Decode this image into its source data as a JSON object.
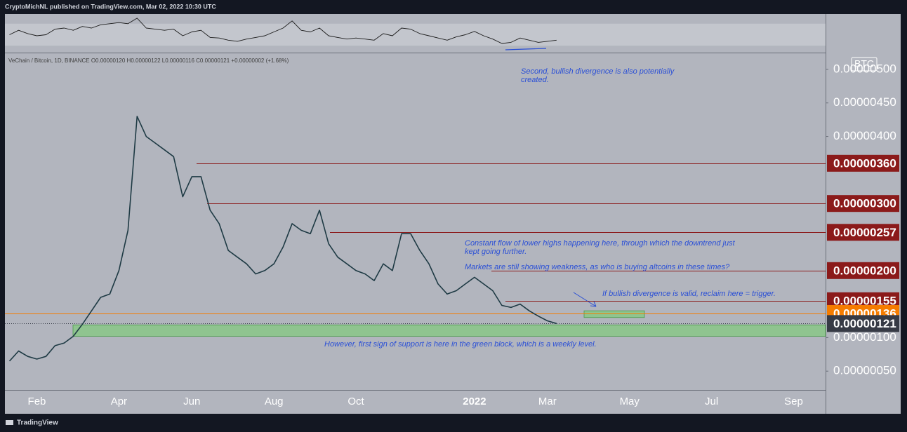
{
  "header": "CryptoMichNL published on TradingView.com, Mar 02, 2022 10:30 UTC",
  "footer": "TradingView",
  "chart_data": {
    "type": "line",
    "legend_text": "VeChain / Bitcoin, 1D, BINANCE  O0.00000120  H0.00000122  L0.00000116  C0.00000121  +0.00000002 (+1.68%)",
    "currency": "BTC",
    "categories": [
      null,
      null,
      null,
      "Feb",
      null,
      null,
      null,
      null,
      null,
      null,
      null,
      null,
      "Apr",
      null,
      null,
      null,
      null,
      null,
      null,
      null,
      "Jun",
      null,
      null,
      null,
      null,
      null,
      null,
      null,
      null,
      "Aug",
      null,
      null,
      null,
      null,
      null,
      null,
      null,
      null,
      "Oct",
      null,
      null,
      null,
      null,
      null,
      null,
      null,
      null,
      null,
      null,
      null,
      null,
      "2022",
      null,
      null,
      null,
      null,
      null,
      null,
      null,
      "Mar",
      null,
      null,
      null,
      null,
      null,
      null,
      null,
      null,
      "May",
      null,
      null,
      null,
      null,
      null,
      null,
      null,
      null,
      "Jul",
      null,
      null,
      null,
      null,
      null,
      null,
      null,
      null,
      "Sep",
      null,
      null,
      null
    ],
    "series": [
      {
        "name": "VET/BTC",
        "color": "#1e3a44",
        "values": [
          6.5e-07,
          8e-07,
          7.2e-07,
          6.8e-07,
          7.2e-07,
          8.8e-07,
          9.2e-07,
          1.02e-06,
          1.2e-06,
          1.4e-06,
          1.6e-06,
          1.65e-06,
          2e-06,
          2.6e-06,
          4.3e-06,
          4e-06,
          3.9e-06,
          3.8e-06,
          3.7e-06,
          3.1e-06,
          3.4e-06,
          3.4e-06,
          2.9e-06,
          2.7e-06,
          2.3e-06,
          2.2e-06,
          2.1e-06,
          1.95e-06,
          2e-06,
          2.1e-06,
          2.35e-06,
          2.7e-06,
          2.6e-06,
          2.55e-06,
          2.9e-06,
          2.4e-06,
          2.2e-06,
          2.1e-06,
          2e-06,
          1.95e-06,
          1.85e-06,
          2.1e-06,
          2e-06,
          2.55e-06,
          2.55e-06,
          2.3e-06,
          2.1e-06,
          1.8e-06,
          1.65e-06,
          1.7e-06,
          1.8e-06,
          1.9e-06,
          1.8e-06,
          1.7e-06,
          1.48e-06,
          1.45e-06,
          1.5e-06,
          1.4e-06,
          1.32e-06,
          1.25e-06,
          1.21e-06,
          null,
          null,
          null,
          null,
          null,
          null,
          null,
          null,
          null,
          null,
          null,
          null,
          null,
          null,
          null,
          null,
          null,
          null,
          null,
          null,
          null,
          null,
          null,
          null,
          null,
          null,
          null,
          null,
          null
        ]
      },
      {
        "name": "RSI",
        "color": "#1b1b1b",
        "axis": "rsi",
        "values": [
          50,
          58,
          52,
          48,
          50,
          60,
          62,
          58,
          65,
          62,
          68,
          70,
          72,
          70,
          80,
          62,
          60,
          58,
          60,
          48,
          55,
          58,
          45,
          44,
          40,
          38,
          42,
          45,
          48,
          55,
          62,
          75,
          58,
          55,
          62,
          48,
          45,
          42,
          44,
          42,
          40,
          52,
          48,
          62,
          60,
          52,
          48,
          44,
          40,
          46,
          50,
          56,
          48,
          42,
          34,
          36,
          44,
          40,
          36,
          38,
          40,
          null,
          null,
          null,
          null,
          null,
          null,
          null,
          null,
          null,
          null,
          null,
          null,
          null,
          null,
          null,
          null,
          null,
          null,
          null,
          null,
          null,
          null,
          null,
          null,
          null,
          null,
          null,
          null,
          null
        ]
      }
    ],
    "ylim": [
      2.2e-07,
      5.24e-06
    ],
    "yticks": [
      {
        "value": 5e-07,
        "label": "0.00000050"
      },
      {
        "value": 1e-06,
        "label": "0.00000100"
      },
      {
        "value": 4e-06,
        "label": "0.00000400"
      },
      {
        "value": 4.5e-06,
        "label": "0.00000450"
      },
      {
        "value": 5e-06,
        "label": "0.00000500"
      }
    ],
    "rsi_ylim": [
      20,
      85
    ],
    "rsi_band": [
      30,
      70
    ],
    "levels": [
      {
        "value": 3.6e-06,
        "label": "0.00000360",
        "color": "#8b1a1a"
      },
      {
        "value": 3e-06,
        "label": "0.00000300",
        "color": "#8b1a1a"
      },
      {
        "value": 2.57e-06,
        "label": "0.00000257",
        "color": "#8b1a1a"
      },
      {
        "value": 2e-06,
        "label": "0.00000200",
        "color": "#8b1a1a"
      },
      {
        "value": 1.55e-06,
        "label": "0.00000155",
        "color": "#8b1a1a"
      },
      {
        "value": 1.36e-06,
        "label": "0.00000136",
        "color": "#f57c00"
      },
      {
        "value": 1.21e-06,
        "label": "0.00000121",
        "color": "#363a45"
      }
    ],
    "zones": [
      {
        "low": 1.02e-06,
        "high": 1.19e-06,
        "color": "#8fc48f"
      },
      {
        "low": 1.3e-06,
        "high": 1.4e-06,
        "color": "#8fc48f"
      }
    ],
    "annotations": [
      "Second, bullish divergence is also potentially created.",
      "Constant flow of lower highs happening here, through which the downtrend just kept going further.",
      "Markets are still showing weakness, as who is buying altcoins in these times?",
      "If bullish divergence is valid, reclaim here = trigger.",
      "However, first sign of support is here in the green block, which is a weekly level."
    ]
  }
}
